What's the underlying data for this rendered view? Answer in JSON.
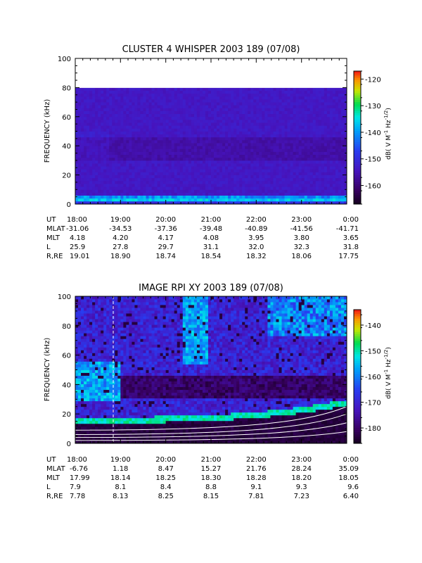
{
  "chart_data": [
    {
      "type": "heatmap",
      "title": "CLUSTER 4 WHISPER 2003 189 (07/08)",
      "ylabel": "FREQUENCY (kHz)",
      "ylim": [
        0,
        100
      ],
      "y_ticks": [
        "0",
        "20",
        "40",
        "60",
        "80",
        "100"
      ],
      "data_ylim": [
        0,
        80
      ],
      "colorbar": {
        "label_parts": [
          "dB( V M",
          "-1",
          " Hz",
          "-1/2",
          ")"
        ],
        "range": [
          -167,
          -117
        ],
        "ticks": [
          "-120",
          "-130",
          "-140",
          "-150",
          "-160"
        ]
      },
      "ephemeris": {
        "labels": [
          "UT",
          "MLAT",
          "MLT",
          "L",
          "R,RE"
        ],
        "times": [
          "18:00",
          "19:00",
          "20:00",
          "21:00",
          "22:00",
          "23:00",
          "0:00"
        ],
        "rows": [
          [
            "-31.06",
            "-34.53",
            "-37.36",
            "-39.48",
            "-40.89",
            "-41.56",
            "-41.71"
          ],
          [
            "4.18",
            "4.20",
            "4.17",
            "4.08",
            "3.95",
            "3.80",
            "3.65"
          ],
          [
            "25.9",
            "27.8",
            "29.7",
            "31.1",
            "32.0",
            "32.3",
            "31.8"
          ],
          [
            "19.01",
            "18.90",
            "18.74",
            "18.54",
            "18.32",
            "18.06",
            "17.75"
          ]
        ]
      }
    },
    {
      "type": "heatmap",
      "title": "IMAGE RPI XY 2003 189 (07/08)",
      "ylabel": "FREQUENCY (kHz)",
      "ylim": [
        0,
        100
      ],
      "y_ticks": [
        "0",
        "20",
        "40",
        "60",
        "80",
        "100"
      ],
      "colorbar": {
        "label_parts": [
          "dB( V M",
          "-1",
          " Hz",
          "-1/2",
          ")"
        ],
        "range": [
          -186,
          -134
        ],
        "ticks": [
          "-140",
          "-150",
          "-160",
          "-170",
          "-180"
        ]
      },
      "ephemeris": {
        "labels": [
          "UT",
          "MLAT",
          "MLT",
          "L",
          "R,RE"
        ],
        "times": [
          "18:00",
          "19:00",
          "20:00",
          "21:00",
          "22:00",
          "23:00",
          "0:00"
        ],
        "rows": [
          [
            "-6.76",
            "1.18",
            "8.47",
            "15.27",
            "21.76",
            "28.24",
            "35.09"
          ],
          [
            "17.99",
            "18.14",
            "18.25",
            "18.30",
            "18.28",
            "18.20",
            "18.05"
          ],
          [
            "7.9",
            "8.1",
            "8.4",
            "8.8",
            "9.1",
            "9.3",
            "9.6"
          ],
          [
            "7.78",
            "8.13",
            "8.25",
            "8.15",
            "7.81",
            "7.23",
            "6.40"
          ]
        ]
      }
    }
  ]
}
